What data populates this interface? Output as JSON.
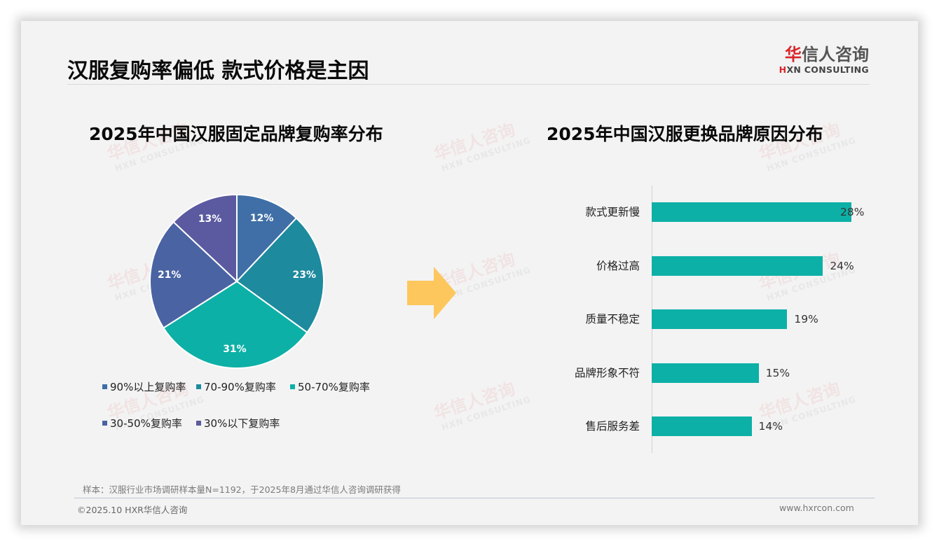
{
  "header": {
    "title": "汉服复购率偏低 款式价格是主因",
    "logo_cn_red": "华",
    "logo_cn_rest": "信人咨询",
    "logo_en_red": "H",
    "logo_en_rest": "XN CONSULTING"
  },
  "watermark": {
    "cn": "华信人咨询",
    "en": "HXN CONSULTING"
  },
  "left_chart": {
    "title": "2025年中国汉服固定品牌复购率分布"
  },
  "right_chart": {
    "title": "2025年中国汉服更换品牌原因分布"
  },
  "colors": {
    "slice_90_plus": "#3f6fa6",
    "slice_70_90": "#1d8a9e",
    "slice_50_70": "#0db0a6",
    "slice_30_50": "#4a63a3",
    "slice_below_30": "#5b5aa0",
    "bar": "#0db0a6",
    "arrow": "#fdc75d",
    "logo_red": "#d8262b"
  },
  "chart_data": [
    {
      "type": "pie",
      "title": "2025年中国汉服固定品牌复购率分布",
      "categories": [
        "90%以上复购率",
        "70-90%复购率",
        "50-70%复购率",
        "30-50%复购率",
        "30%以下复购率"
      ],
      "values": [
        12,
        23,
        31,
        21,
        13
      ],
      "labels": [
        "12%",
        "23%",
        "31%",
        "21%",
        "13%"
      ],
      "colors": [
        "#3f6fa6",
        "#1d8a9e",
        "#0db0a6",
        "#4a63a3",
        "#5b5aa0"
      ],
      "legend_position": "bottom",
      "start_angle": "12 o'clock, clockwise"
    },
    {
      "type": "bar",
      "orientation": "horizontal",
      "title": "2025年中国汉服更换品牌原因分布",
      "categories": [
        "款式更新慢",
        "价格过高",
        "质量不稳定",
        "品牌形象不符",
        "售后服务差"
      ],
      "values": [
        28,
        24,
        19,
        15,
        14
      ],
      "labels": [
        "28%",
        "24%",
        "19%",
        "15%",
        "14%"
      ],
      "xlabel": "",
      "ylabel": "",
      "grid": false,
      "color": "#0db0a6"
    }
  ],
  "footer": {
    "source": "样本：汉服行业市场调研样本量N=1192，于2025年8月通过华信人咨询调研获得",
    "copyright": "©2025.10 HXR华信人咨询",
    "website": "www.hxrcon.com"
  }
}
